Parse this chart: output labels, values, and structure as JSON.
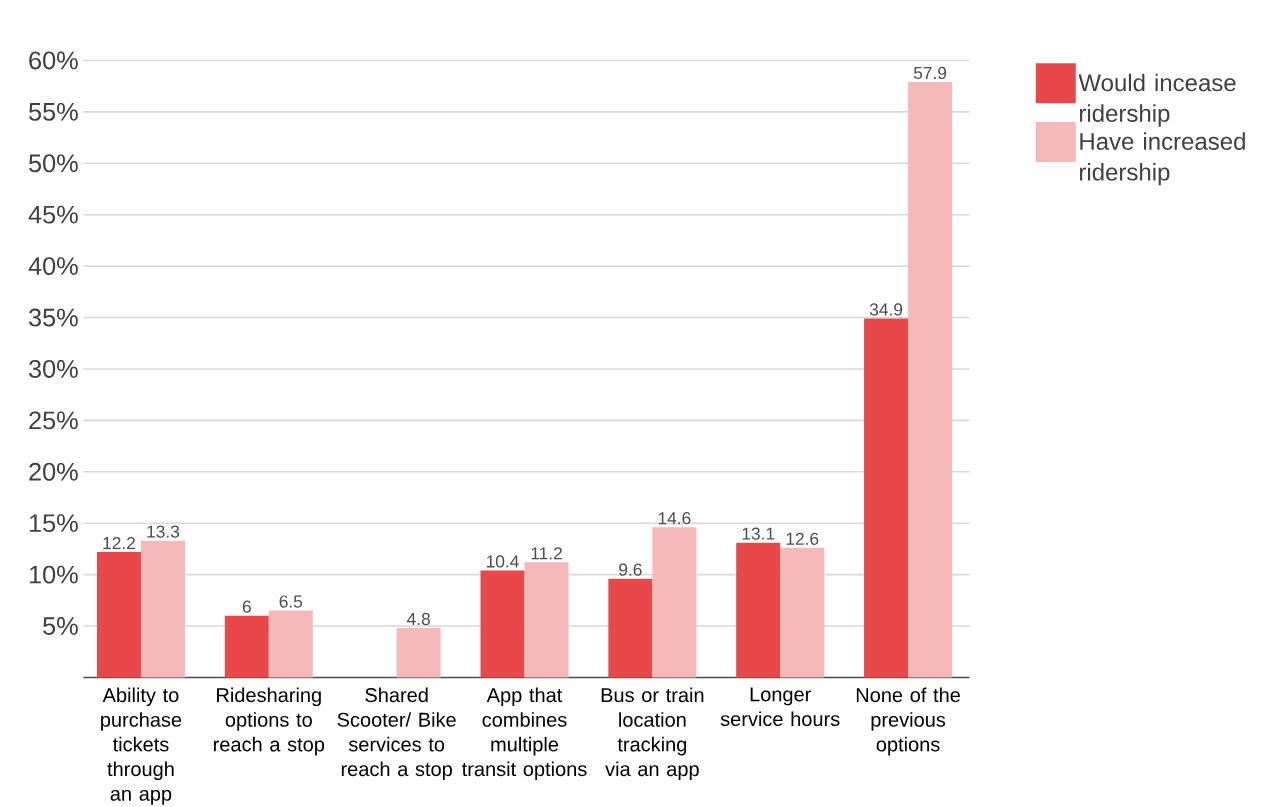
{
  "chart_data": {
    "type": "bar",
    "categories": [
      "Ability to purchase tickets through an app",
      "Ridesharing options to reach a stop",
      "Shared Scooter/ Bike services to reach a stop",
      "App that combines multiple transit options",
      "Bus or train location tracking via an app",
      "Longer service hours",
      "None of the previous options"
    ],
    "series": [
      {
        "name": "Would incease ridership",
        "color": "#e8484a",
        "values": [
          12.2,
          6,
          null,
          10.4,
          9.6,
          13.1,
          34.9
        ]
      },
      {
        "name": "Have increased ridership",
        "color": "#f5b9b9",
        "values": [
          13.3,
          6.5,
          4.8,
          11.2,
          14.6,
          12.6,
          57.9
        ]
      }
    ],
    "ylim": [
      0,
      60
    ],
    "yticks": [
      {
        "value": 5,
        "label": "5%"
      },
      {
        "value": 10,
        "label": "10%"
      },
      {
        "value": 15,
        "label": "15%"
      },
      {
        "value": 20,
        "label": "20%"
      },
      {
        "value": 25,
        "label": "25%"
      },
      {
        "value": 30,
        "label": "30%"
      },
      {
        "value": 35,
        "label": "35%"
      },
      {
        "value": 40,
        "label": "40%"
      },
      {
        "value": 45,
        "label": "45%"
      },
      {
        "value": 50,
        "label": "50%"
      },
      {
        "value": 55,
        "label": "55%"
      },
      {
        "value": 60,
        "label": "60%"
      }
    ],
    "grid": "y",
    "legend": "top right",
    "data_labels": true
  }
}
